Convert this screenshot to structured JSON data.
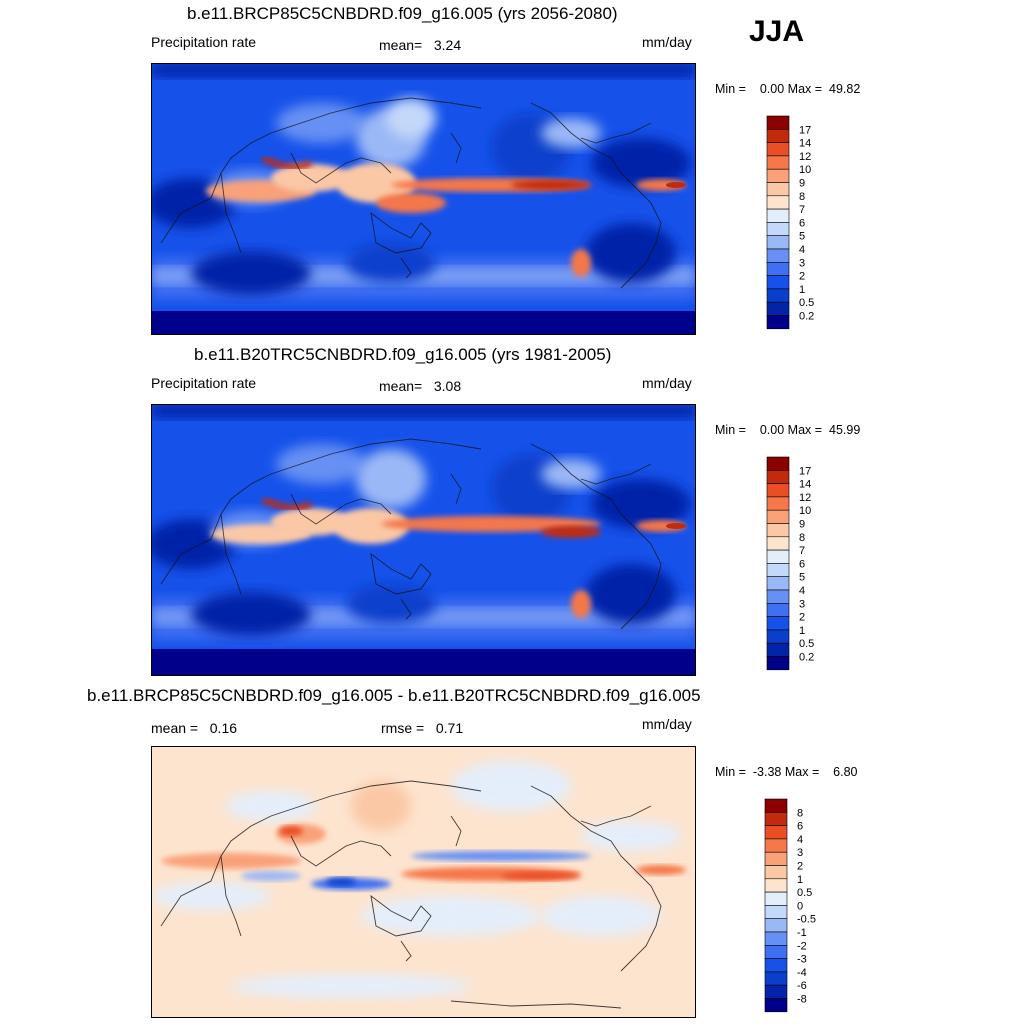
{
  "season": "JJA",
  "colors": {
    "precip_levels": [
      "#00008b",
      "#0323a8",
      "#0a3fcc",
      "#1652ea",
      "#3f70f2",
      "#6690f4",
      "#9bb8f6",
      "#c4d8f9",
      "#e4eefb",
      "#fde4cf",
      "#fbc8a6",
      "#f9a179",
      "#f5774a",
      "#e94e25",
      "#c22a0c",
      "#8b0000"
    ],
    "diff_levels": [
      "#00008b",
      "#0323a8",
      "#0a3fcc",
      "#1652ea",
      "#3f70f2",
      "#6690f4",
      "#9bb8f6",
      "#c4d8f9",
      "#e4eefb",
      "#fde4cf",
      "#fbc8a6",
      "#f9a179",
      "#f5774a",
      "#e94e25",
      "#c22a0c",
      "#8b0000"
    ]
  },
  "panels": [
    {
      "title": "b.e11.BRCP85C5CNBDRD.f09_g16.005 (yrs 2056-2080)",
      "left_label": "Precipitation rate",
      "mean_label": "mean=",
      "mean_value": "3.24",
      "units": "mm/day",
      "min_label": "Min =",
      "min_value": "0.00",
      "max_label": "Max =",
      "max_value": "49.82",
      "colorbar_ticks": [
        "17",
        "14",
        "12",
        "10",
        "9",
        "8",
        "7",
        "6",
        "5",
        "4",
        "3",
        "2",
        "1",
        "0.5",
        "0.2"
      ]
    },
    {
      "title": "b.e11.B20TRC5CNBDRD.f09_g16.005 (yrs 1981-2005)",
      "left_label": "Precipitation rate",
      "mean_label": "mean=",
      "mean_value": "3.08",
      "units": "mm/day",
      "min_label": "Min =",
      "min_value": "0.00",
      "max_label": "Max =",
      "max_value": "45.99",
      "colorbar_ticks": [
        "17",
        "14",
        "12",
        "10",
        "9",
        "8",
        "7",
        "6",
        "5",
        "4",
        "3",
        "2",
        "1",
        "0.5",
        "0.2"
      ]
    },
    {
      "title": "b.e11.BRCP85C5CNBDRD.f09_g16.005 - b.e11.B20TRC5CNBDRD.f09_g16.005",
      "left_label": "mean =",
      "left_value": "0.16",
      "rmse_label": "rmse =",
      "rmse_value": "0.71",
      "units": "mm/day",
      "min_label": "Min =",
      "min_value": "-3.38",
      "max_label": "Max =",
      "max_value": "6.80",
      "colorbar_ticks": [
        "8",
        "6",
        "4",
        "3",
        "2",
        "1",
        "0.5",
        "0",
        "-0.5",
        "-1",
        "-2",
        "-3",
        "-4",
        "-6",
        "-8"
      ]
    }
  ]
}
